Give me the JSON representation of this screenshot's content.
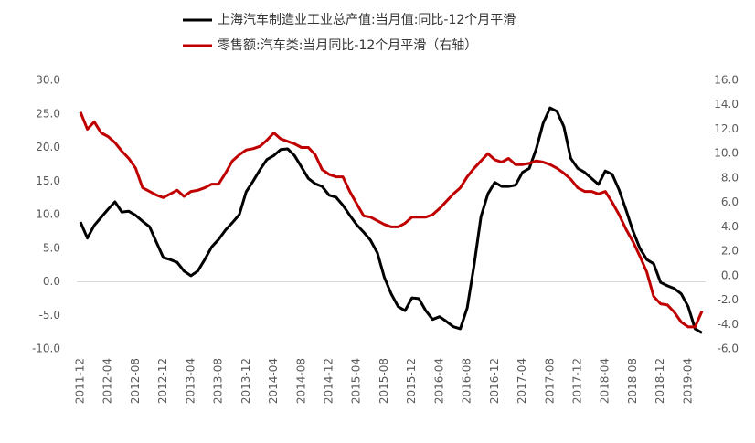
{
  "chart_data": {
    "type": "line",
    "categories": [
      "2011-12",
      null,
      null,
      null,
      "2012-04",
      null,
      null,
      null,
      "2012-08",
      null,
      null,
      null,
      "2012-12",
      null,
      null,
      null,
      "2013-04",
      null,
      null,
      null,
      "2013-08",
      null,
      null,
      null,
      "2013-12",
      null,
      null,
      null,
      "2014-04",
      null,
      null,
      null,
      "2014-08",
      null,
      null,
      null,
      "2014-12",
      null,
      null,
      null,
      "2015-04",
      null,
      null,
      null,
      "2015-08",
      null,
      null,
      null,
      "2015-12",
      null,
      null,
      null,
      "2016-04",
      null,
      null,
      null,
      "2016-08",
      null,
      null,
      null,
      "2016-12",
      null,
      null,
      null,
      "2017-04",
      null,
      null,
      null,
      "2017-08",
      null,
      null,
      null,
      "2017-12",
      null,
      null,
      null,
      "2018-04",
      null,
      null,
      null,
      "2018-08",
      null,
      null,
      null,
      "2018-12",
      null,
      null,
      null,
      "2019-04",
      null,
      null
    ],
    "series": [
      {
        "name": "上海汽车制造业工业总产值:当月值:同比-12个月平滑",
        "color": "#000000",
        "axis": "y",
        "values": [
          8.9,
          6.5,
          8.4,
          9.6,
          10.8,
          11.9,
          10.4,
          10.5,
          9.9,
          9.0,
          8.2,
          5.9,
          3.6,
          3.3,
          2.9,
          1.6,
          0.9,
          1.6,
          3.3,
          5.2,
          6.3,
          7.7,
          8.8,
          10.0,
          13.4,
          15.0,
          16.7,
          18.2,
          18.8,
          19.7,
          19.8,
          18.8,
          17.1,
          15.4,
          14.6,
          14.2,
          12.9,
          12.6,
          11.4,
          9.9,
          8.5,
          7.4,
          6.2,
          4.3,
          0.7,
          -1.8,
          -3.7,
          -4.3,
          -2.4,
          -2.5,
          -4.3,
          -5.6,
          -5.2,
          -5.9,
          -6.7,
          -7.0,
          -3.9,
          2.5,
          9.7,
          13.1,
          14.8,
          14.2,
          14.2,
          14.4,
          16.3,
          16.9,
          19.8,
          23.6,
          25.9,
          25.4,
          23.1,
          18.4,
          16.9,
          16.3,
          15.4,
          14.5,
          16.5,
          16.0,
          13.7,
          10.7,
          7.6,
          5.0,
          3.3,
          2.7,
          -0.1,
          -0.6,
          -1.0,
          -1.8,
          -3.7,
          -7.0,
          -7.6
        ]
      },
      {
        "name": "零售额:汽车类:当月同比-12个月平滑（右轴）",
        "color": "#c00000",
        "axis": "y2",
        "values": [
          13.4,
          12.0,
          12.6,
          11.7,
          11.4,
          10.9,
          10.2,
          9.6,
          8.8,
          7.2,
          6.9,
          6.6,
          6.4,
          6.7,
          7.0,
          6.5,
          6.9,
          7.0,
          7.2,
          7.5,
          7.5,
          8.4,
          9.4,
          9.9,
          10.3,
          10.4,
          10.6,
          11.1,
          11.7,
          11.2,
          11.0,
          10.8,
          10.5,
          10.5,
          9.9,
          8.7,
          8.3,
          8.1,
          8.1,
          6.9,
          5.9,
          4.9,
          4.8,
          4.5,
          4.2,
          4.0,
          4.0,
          4.3,
          4.8,
          4.8,
          4.8,
          5.0,
          5.5,
          6.1,
          6.7,
          7.2,
          8.1,
          8.8,
          9.4,
          10.0,
          9.5,
          9.3,
          9.6,
          9.1,
          9.1,
          9.2,
          9.4,
          9.3,
          9.1,
          8.8,
          8.4,
          7.9,
          7.2,
          6.9,
          6.9,
          6.7,
          6.9,
          6.0,
          5.0,
          3.8,
          2.8,
          1.6,
          0.3,
          -1.7,
          -2.3,
          -2.4,
          -3.0,
          -3.8,
          -4.2,
          -4.2,
          -2.9
        ]
      }
    ],
    "ylim": [
      -10,
      30
    ],
    "yticks": [
      {
        "value": -10,
        "label": "-10.0"
      },
      {
        "value": -5,
        "label": "-5.0"
      },
      {
        "value": 0,
        "label": "0.0"
      },
      {
        "value": 5,
        "label": "5.0"
      },
      {
        "value": 10,
        "label": "10.0"
      },
      {
        "value": 15,
        "label": "15.0"
      },
      {
        "value": 20,
        "label": "20.0"
      },
      {
        "value": 25,
        "label": "25.0"
      },
      {
        "value": 30,
        "label": "30.0"
      }
    ],
    "y2lim": [
      -6,
      16
    ],
    "y2ticks": [
      {
        "value": -6,
        "label": "-6.0"
      },
      {
        "value": -4,
        "label": "-4.0"
      },
      {
        "value": -2,
        "label": "-2.0"
      },
      {
        "value": 0,
        "label": "0.0"
      },
      {
        "value": 2,
        "label": "2.0"
      },
      {
        "value": 4,
        "label": "4.0"
      },
      {
        "value": 6,
        "label": "6.0"
      },
      {
        "value": 8,
        "label": "8.0"
      },
      {
        "value": 10,
        "label": "10.0"
      },
      {
        "value": 12,
        "label": "12.0"
      },
      {
        "value": 14,
        "label": "14.0"
      },
      {
        "value": 16,
        "label": "16.0"
      }
    ],
    "grid": false
  }
}
